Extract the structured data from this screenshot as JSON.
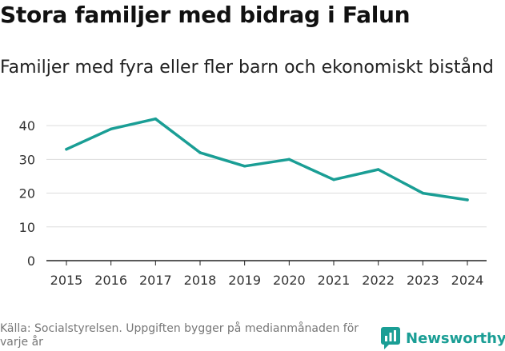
{
  "header": {
    "title": "Stora familjer med bidrag i Falun",
    "subtitle": "Familjer med fyra eller fler barn och ekonomiskt bistånd"
  },
  "chart_data": {
    "type": "line",
    "title": "Stora familjer med bidrag i Falun",
    "subtitle": "Familjer med fyra eller fler barn och ekonomiskt bistånd",
    "xlabel": "",
    "ylabel": "",
    "categories": [
      "2015",
      "2016",
      "2017",
      "2018",
      "2019",
      "2020",
      "2021",
      "2022",
      "2023",
      "2024"
    ],
    "series": [
      {
        "name": "Familjer med fyra eller fler barn och ekonomiskt bistånd",
        "values": [
          33,
          39,
          42,
          32,
          28,
          30,
          24,
          27,
          20,
          18
        ]
      }
    ],
    "ylim": [
      0,
      45
    ],
    "yticks": [
      0,
      10,
      20,
      30,
      40
    ],
    "grid": true,
    "legend": "none"
  },
  "footer": {
    "source": "Källa: Socialstyrelsen. Uppgiften bygger på medianmånaden för varje år",
    "brand": "Newsworthy"
  },
  "colors": {
    "line": "#1a9e95",
    "brand": "#1a9e95",
    "grid": "#dddddd",
    "axis": "#222222"
  }
}
